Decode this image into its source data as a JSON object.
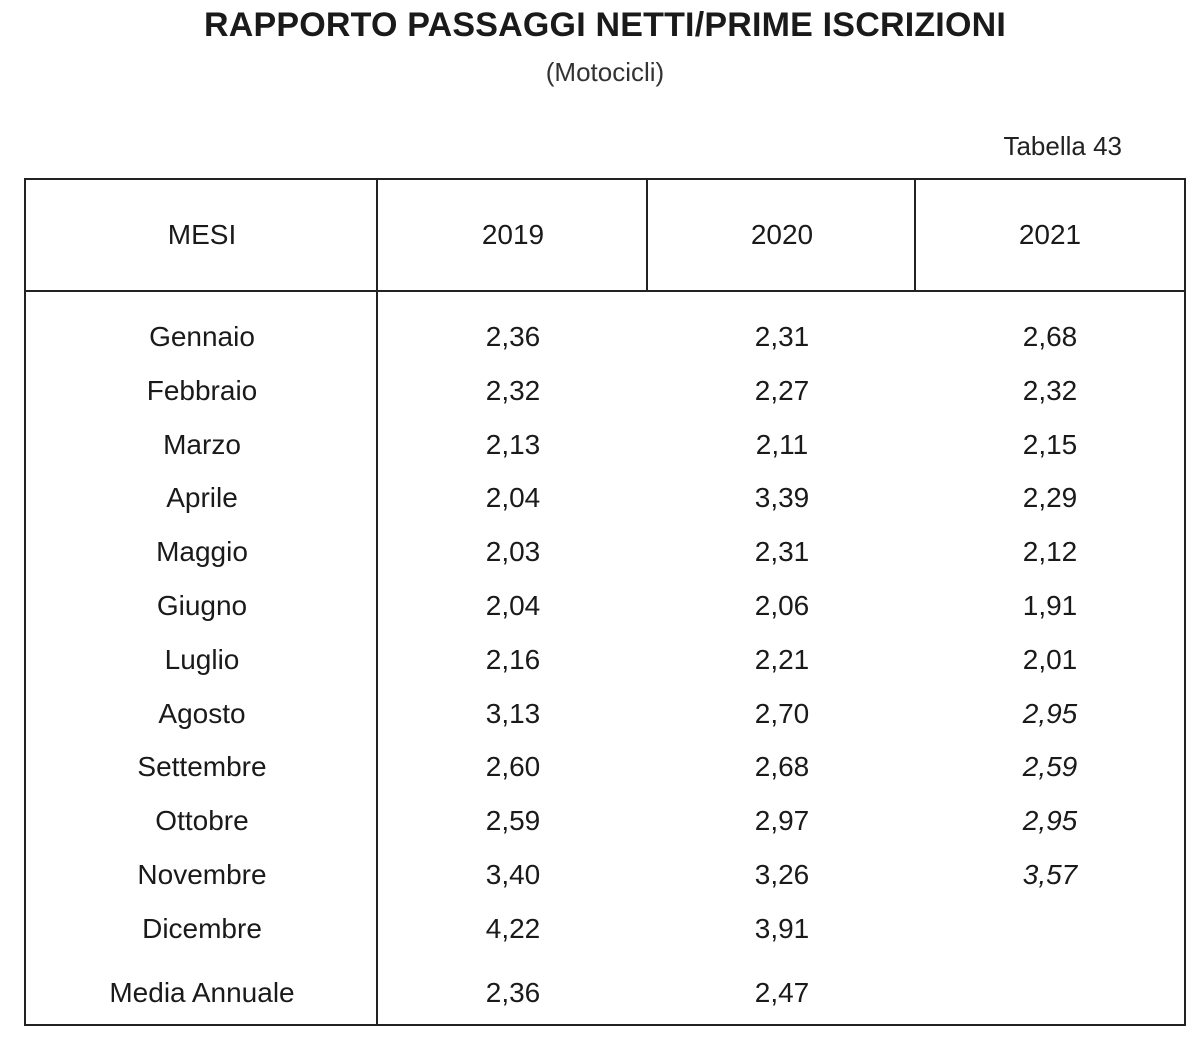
{
  "title": "RAPPORTO PASSAGGI NETTI/PRIME ISCRIZIONI",
  "subtitle": "(Motocicli)",
  "table_label": "Tabella 43",
  "columns": [
    "MESI",
    "2019",
    "2020",
    "2021"
  ],
  "rows": [
    {
      "month": "Gennaio",
      "v2019": "2,36",
      "v2020": "2,31",
      "v2021": "2,68",
      "v2021_italic": false
    },
    {
      "month": "Febbraio",
      "v2019": "2,32",
      "v2020": "2,27",
      "v2021": "2,32",
      "v2021_italic": false
    },
    {
      "month": "Marzo",
      "v2019": "2,13",
      "v2020": "2,11",
      "v2021": "2,15",
      "v2021_italic": false
    },
    {
      "month": "Aprile",
      "v2019": "2,04",
      "v2020": "3,39",
      "v2021": "2,29",
      "v2021_italic": false
    },
    {
      "month": "Maggio",
      "v2019": "2,03",
      "v2020": "2,31",
      "v2021": "2,12",
      "v2021_italic": false
    },
    {
      "month": "Giugno",
      "v2019": "2,04",
      "v2020": "2,06",
      "v2021": "1,91",
      "v2021_italic": false
    },
    {
      "month": "Luglio",
      "v2019": "2,16",
      "v2020": "2,21",
      "v2021": "2,01",
      "v2021_italic": false
    },
    {
      "month": "Agosto",
      "v2019": "3,13",
      "v2020": "2,70",
      "v2021": "2,95",
      "v2021_italic": true
    },
    {
      "month": "Settembre",
      "v2019": "2,60",
      "v2020": "2,68",
      "v2021": "2,59",
      "v2021_italic": true
    },
    {
      "month": "Ottobre",
      "v2019": "2,59",
      "v2020": "2,97",
      "v2021": "2,95",
      "v2021_italic": true
    },
    {
      "month": "Novembre",
      "v2019": "3,40",
      "v2020": "3,26",
      "v2021": "3,57",
      "v2021_italic": true
    },
    {
      "month": "Dicembre",
      "v2019": "4,22",
      "v2020": "3,91",
      "v2021": "",
      "v2021_italic": false
    }
  ],
  "annual": {
    "month": "Media Annuale",
    "v2019": "2,36",
    "v2020": "2,47",
    "v2021": ""
  }
}
